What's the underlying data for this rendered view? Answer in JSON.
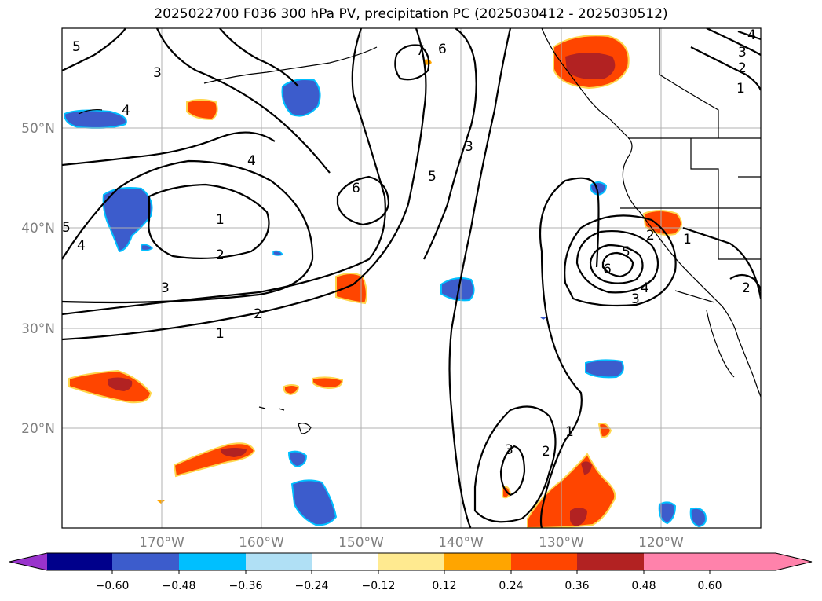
{
  "title": "2025022700 F036 300 hPa PV, precipitation PC (2025030412 - 2025030512)",
  "map": {
    "lon_labels": [
      "170°W",
      "160°W",
      "150°W",
      "140°W",
      "130°W",
      "120°W"
    ],
    "lat_labels": [
      "50°N",
      "40°N",
      "30°N",
      "20°N"
    ],
    "extent": {
      "lon_min": -180,
      "lon_max": -110,
      "lat_min": 10,
      "lat_max": 60
    },
    "contour_labels": [
      "1",
      "1",
      "1",
      "1",
      "1",
      "2",
      "2",
      "2",
      "2",
      "2",
      "2",
      "3",
      "3",
      "3",
      "3",
      "3",
      "3",
      "4",
      "4",
      "4",
      "4",
      "4",
      "5",
      "5",
      "5",
      "5",
      "6",
      "6",
      "6",
      "7"
    ],
    "field": "300 hPa PV",
    "shading": "precipitation PC"
  },
  "colorbar": {
    "ticks": [
      "−0.60",
      "−0.48",
      "−0.36",
      "−0.24",
      "−0.12",
      "0.12",
      "0.24",
      "0.36",
      "0.48",
      "0.60"
    ],
    "colors": [
      "#9933cc",
      "#00008b",
      "#3c5ccc",
      "#00bfff",
      "#b0e0f5",
      "#ffffff",
      "#ffea90",
      "#ffa500",
      "#ff4500",
      "#b22222",
      "#ff82ab"
    ]
  }
}
